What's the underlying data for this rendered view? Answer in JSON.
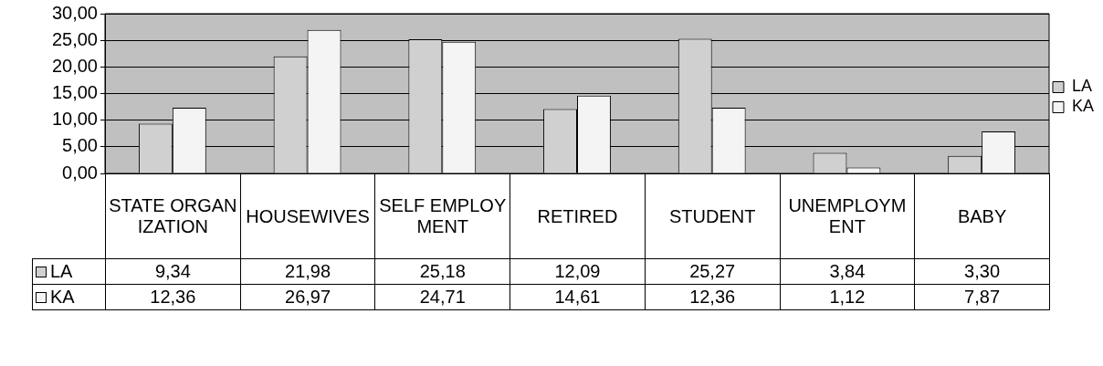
{
  "chart_data": {
    "type": "bar",
    "categories": [
      "STATE ORGANIZATION",
      "HOUSEWIVES",
      "SELF EMPLOYMENT",
      "RETIRED",
      "STUDENT",
      "UNEMPLOYMENT",
      "BABY"
    ],
    "series": [
      {
        "name": "LA",
        "color": "#d0d0d0",
        "values": [
          9.34,
          21.98,
          25.18,
          12.09,
          25.27,
          3.84,
          3.3
        ],
        "value_labels": [
          "9,34",
          "21,98",
          "25,18",
          "12,09",
          "25,27",
          "3,84",
          "3,30"
        ]
      },
      {
        "name": "KA",
        "color": "#f4f4f4",
        "values": [
          12.36,
          26.97,
          24.71,
          14.61,
          12.36,
          1.12,
          7.87
        ],
        "value_labels": [
          "12,36",
          "26,97",
          "24,71",
          "14,61",
          "12,36",
          "1,12",
          "7,87"
        ]
      }
    ],
    "ylim": [
      0,
      30
    ],
    "yticks": [
      {
        "value": 0,
        "label": "0,00"
      },
      {
        "value": 5,
        "label": "5,00"
      },
      {
        "value": 10,
        "label": "10,00"
      },
      {
        "value": 15,
        "label": "15,00"
      },
      {
        "value": 20,
        "label": "20,00"
      },
      {
        "value": 25,
        "label": "25,00"
      },
      {
        "value": 30,
        "label": "30,00"
      }
    ],
    "grid": "y",
    "legend": "right"
  }
}
